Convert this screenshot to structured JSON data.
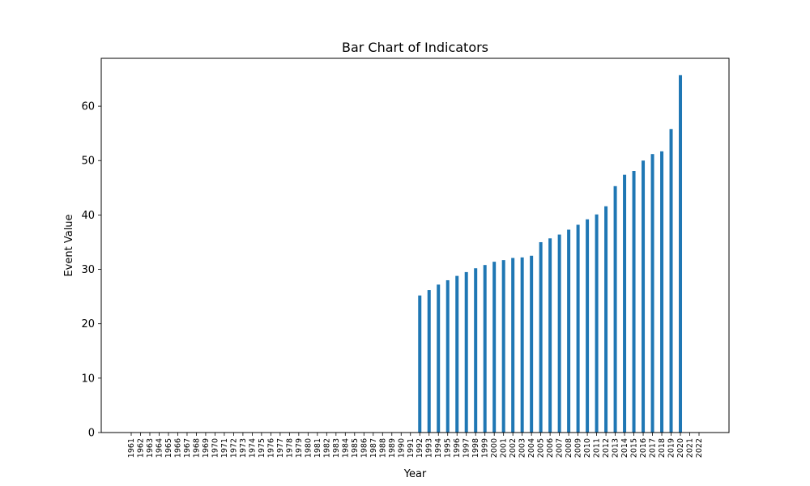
{
  "chart_data": {
    "type": "bar",
    "title": "Bar Chart of Indicators",
    "xlabel": "Year",
    "ylabel": "Event Value",
    "ylim": [
      0,
      68.8
    ],
    "yticks": [
      0,
      10,
      20,
      30,
      40,
      50,
      60
    ],
    "bar_color": "#1f77b4",
    "grid": false,
    "categories": [
      "1961",
      "1962",
      "1963",
      "1964",
      "1965",
      "1966",
      "1967",
      "1968",
      "1969",
      "1970",
      "1971",
      "1972",
      "1973",
      "1974",
      "1975",
      "1976",
      "1977",
      "1978",
      "1979",
      "1980",
      "1981",
      "1982",
      "1983",
      "1984",
      "1985",
      "1986",
      "1987",
      "1988",
      "1989",
      "1990",
      "1991",
      "1992",
      "1993",
      "1994",
      "1995",
      "1996",
      "1997",
      "1998",
      "1999",
      "2000",
      "2001",
      "2002",
      "2003",
      "2004",
      "2005",
      "2006",
      "2007",
      "2008",
      "2009",
      "2010",
      "2011",
      "2012",
      "2013",
      "2014",
      "2015",
      "2016",
      "2017",
      "2018",
      "2019",
      "2020",
      "2021",
      "2022"
    ],
    "values": [
      0,
      0,
      0,
      0,
      0,
      0,
      0,
      0,
      0,
      0,
      0,
      0,
      0,
      0,
      0,
      0,
      0,
      0,
      0,
      0,
      0,
      0,
      0,
      0,
      0,
      0,
      0,
      0,
      0,
      0,
      0,
      25.2,
      26.2,
      27.2,
      28.0,
      28.8,
      29.5,
      30.2,
      30.8,
      31.4,
      31.7,
      32.1,
      32.2,
      32.5,
      35.0,
      35.7,
      36.4,
      37.3,
      38.2,
      39.2,
      40.1,
      41.6,
      45.3,
      47.4,
      48.1,
      50.0,
      51.2,
      51.7,
      55.8,
      65.7,
      0,
      0
    ]
  }
}
